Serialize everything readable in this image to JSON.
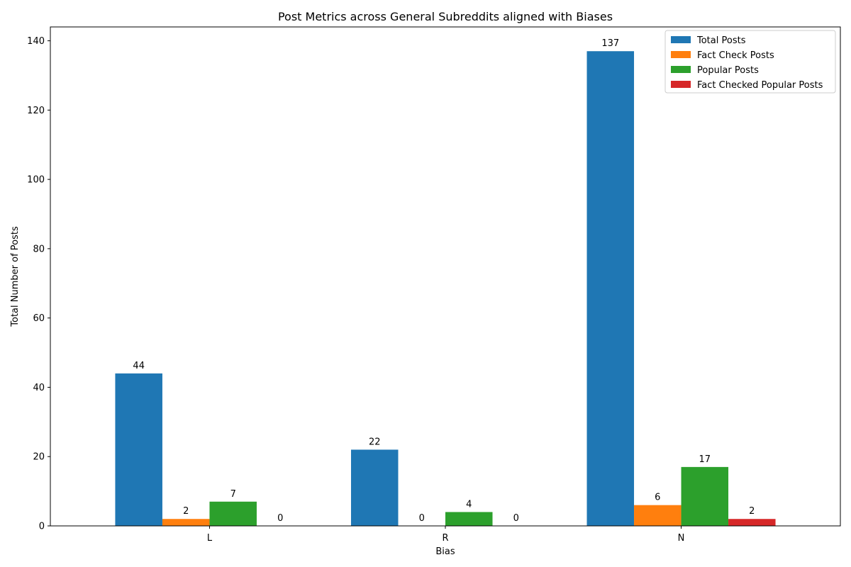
{
  "chart_data": {
    "type": "bar",
    "title": "Post Metrics across General Subreddits aligned with Biases",
    "xlabel": "Bias",
    "ylabel": "Total Number of Posts",
    "categories": [
      "L",
      "R",
      "N"
    ],
    "ylim": [
      0,
      144
    ],
    "yticks": [
      0,
      20,
      40,
      60,
      80,
      100,
      120,
      140
    ],
    "grid": false,
    "legend_position": "top-right",
    "series": [
      {
        "name": "Total Posts",
        "color": "#1f77b4",
        "values": [
          44,
          22,
          137
        ]
      },
      {
        "name": "Fact Check Posts",
        "color": "#ff7f0e",
        "values": [
          2,
          0,
          6
        ]
      },
      {
        "name": "Popular Posts",
        "color": "#2ca02c",
        "values": [
          7,
          4,
          17
        ]
      },
      {
        "name": "Fact Checked Popular Posts",
        "color": "#d62728",
        "values": [
          0,
          0,
          2
        ]
      }
    ]
  }
}
